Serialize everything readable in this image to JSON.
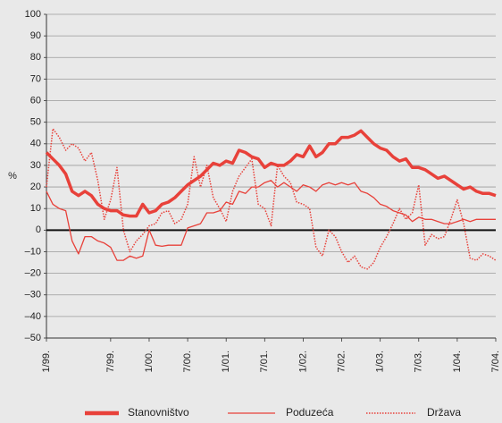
{
  "chart_data": {
    "type": "line",
    "ylabel": "%",
    "categories": [
      "1/99.",
      null,
      null,
      null,
      null,
      null,
      null,
      null,
      null,
      null,
      "7/99.",
      null,
      null,
      null,
      null,
      null,
      "1/00.",
      null,
      null,
      null,
      null,
      null,
      "7/00.",
      null,
      null,
      null,
      null,
      null,
      "1/01.",
      null,
      null,
      null,
      null,
      null,
      "7/01.",
      null,
      null,
      null,
      null,
      null,
      "1/02.",
      null,
      null,
      null,
      null,
      null,
      "7/02.",
      null,
      null,
      null,
      null,
      null,
      "1/03.",
      null,
      null,
      null,
      null,
      null,
      "7/03.",
      null,
      null,
      null,
      null,
      null,
      "1/04.",
      null,
      null,
      null,
      null,
      null,
      "7/04."
    ],
    "series": [
      {
        "name": "Stanovništvo",
        "color": "#e8413a",
        "line_style": "solid",
        "line_width": 3.5,
        "values": [
          36,
          33,
          30,
          26,
          18,
          16,
          18,
          16,
          12,
          10,
          9,
          9,
          7,
          6.5,
          6.5,
          12,
          8,
          9,
          12,
          13,
          15,
          18,
          21,
          23,
          25,
          28,
          31,
          30,
          32,
          31,
          37,
          36,
          34,
          33,
          29,
          31,
          30,
          30,
          32,
          35,
          34,
          39,
          34,
          36,
          40,
          40,
          43,
          43,
          44,
          46,
          43,
          40,
          38,
          37,
          34,
          32,
          33,
          29,
          29,
          28,
          26,
          24,
          25,
          23,
          21,
          19,
          20,
          18,
          17,
          17,
          16
        ]
      },
      {
        "name": "Poduzeća",
        "color": "#e8413a",
        "line_style": "solid",
        "line_width": 1.3,
        "values": [
          18,
          12,
          10,
          9,
          -5,
          -11,
          -3,
          -3,
          -5,
          -6,
          -8,
          -14,
          -14,
          -12,
          -13,
          -12,
          0,
          -7,
          -7.5,
          -7,
          -7,
          -7,
          1,
          2,
          3,
          8,
          8,
          9,
          13,
          12,
          18,
          17,
          20,
          20,
          22,
          23,
          20,
          22,
          20,
          18,
          21,
          20,
          18,
          21,
          22,
          21,
          22,
          21,
          22,
          18,
          17,
          15,
          12,
          11,
          9,
          8,
          7,
          4,
          6,
          5,
          5,
          4,
          3,
          3,
          4,
          5,
          4,
          5,
          5,
          5,
          5
        ]
      },
      {
        "name": "Država",
        "color": "#e8413a",
        "line_style": "dotted",
        "line_width": 1.5,
        "values": [
          20,
          47,
          43,
          37,
          40,
          38,
          32,
          36,
          23,
          5,
          14,
          29,
          0,
          -10,
          -5,
          -2,
          2,
          3,
          8,
          9,
          3,
          5,
          12,
          34,
          20,
          30,
          15,
          10,
          4,
          18,
          25,
          29,
          33,
          12,
          10,
          2,
          30,
          25,
          22,
          13,
          12,
          10,
          -8,
          -12,
          0,
          -3,
          -10,
          -15,
          -12,
          -17,
          -18,
          -15,
          -8,
          -3,
          3,
          10,
          5,
          8,
          21,
          -7,
          -2,
          -4,
          -3,
          5,
          14,
          3,
          -13,
          -14,
          -11,
          -12,
          -14
        ]
      }
    ],
    "ylim": [
      -50,
      100
    ],
    "yticks": [
      {
        "value": -50,
        "label": "–50"
      },
      {
        "value": -40,
        "label": "–40"
      },
      {
        "value": -30,
        "label": "–30"
      },
      {
        "value": -20,
        "label": "–20"
      },
      {
        "value": -10,
        "label": "–10"
      },
      0,
      10,
      20,
      30,
      40,
      50,
      60,
      70,
      80,
      90,
      100
    ],
    "grid": true,
    "legend": "bottom"
  }
}
